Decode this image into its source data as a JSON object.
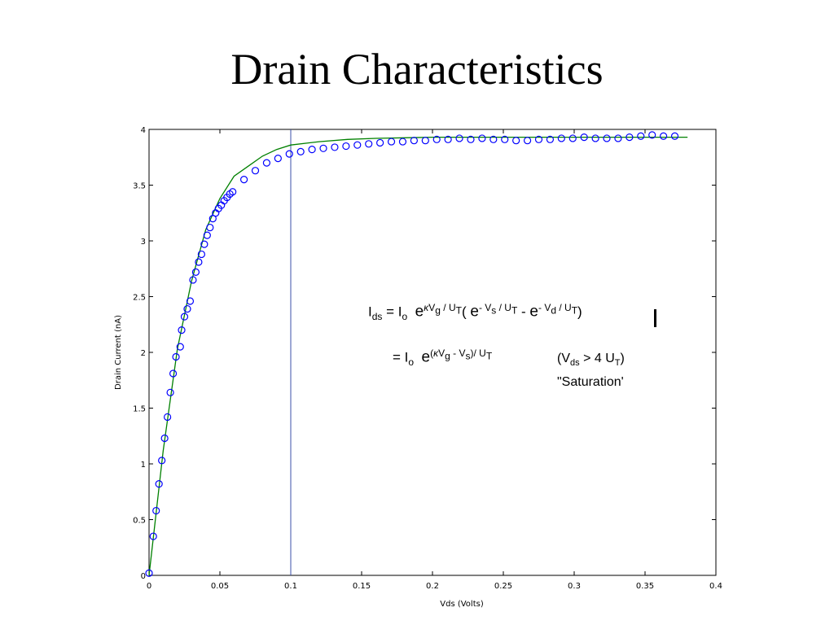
{
  "slide": {
    "title": "Drain Characteristics"
  },
  "chart_data": {
    "type": "scatter",
    "title": "",
    "xlabel": "Vds (Volts)",
    "ylabel": "Drain Current (nA)",
    "xlim": [
      0,
      0.4
    ],
    "ylim": [
      0,
      4
    ],
    "grid": false,
    "x_ticks": [
      0,
      0.05,
      0.1,
      0.15,
      0.2,
      0.25,
      0.3,
      0.35,
      0.4
    ],
    "x_tick_labels": [
      "0",
      "0.05",
      "0.1",
      "0.15",
      "0.2",
      "0.25",
      "0.3",
      "0.35",
      "0.4"
    ],
    "y_ticks": [
      0,
      0.5,
      1,
      1.5,
      2,
      2.5,
      3,
      3.5,
      4
    ],
    "y_tick_labels": [
      "0",
      "0.5",
      "1",
      "1.5",
      "2",
      "2.5",
      "3",
      "3.5",
      "4"
    ],
    "vertical_line_x": 0.1,
    "colors": {
      "measured": "#0000ff",
      "model": "#008000",
      "vline": "#3b4fa8"
    },
    "series": [
      {
        "kind": "markers",
        "points": [
          [
            0.0,
            0.02
          ],
          [
            0.003,
            0.35
          ],
          [
            0.005,
            0.58
          ],
          [
            0.007,
            0.82
          ],
          [
            0.009,
            1.03
          ],
          [
            0.011,
            1.23
          ],
          [
            0.013,
            1.42
          ],
          [
            0.015,
            1.64
          ],
          [
            0.017,
            1.81
          ],
          [
            0.019,
            1.96
          ],
          [
            0.022,
            2.05
          ],
          [
            0.023,
            2.2
          ],
          [
            0.025,
            2.32
          ],
          [
            0.027,
            2.39
          ],
          [
            0.029,
            2.46
          ],
          [
            0.031,
            2.65
          ],
          [
            0.033,
            2.72
          ],
          [
            0.035,
            2.81
          ],
          [
            0.037,
            2.88
          ],
          [
            0.039,
            2.97
          ],
          [
            0.041,
            3.05
          ],
          [
            0.043,
            3.12
          ],
          [
            0.045,
            3.2
          ],
          [
            0.047,
            3.25
          ],
          [
            0.049,
            3.29
          ],
          [
            0.051,
            3.32
          ],
          [
            0.053,
            3.36
          ],
          [
            0.055,
            3.39
          ],
          [
            0.057,
            3.42
          ],
          [
            0.059,
            3.44
          ],
          [
            0.067,
            3.55
          ],
          [
            0.075,
            3.63
          ],
          [
            0.083,
            3.7
          ],
          [
            0.091,
            3.74
          ],
          [
            0.099,
            3.78
          ],
          [
            0.107,
            3.8
          ],
          [
            0.115,
            3.82
          ],
          [
            0.123,
            3.83
          ],
          [
            0.131,
            3.84
          ],
          [
            0.139,
            3.85
          ],
          [
            0.147,
            3.86
          ],
          [
            0.155,
            3.87
          ],
          [
            0.163,
            3.88
          ],
          [
            0.171,
            3.89
          ],
          [
            0.179,
            3.89
          ],
          [
            0.187,
            3.9
          ],
          [
            0.195,
            3.9
          ],
          [
            0.203,
            3.91
          ],
          [
            0.211,
            3.91
          ],
          [
            0.219,
            3.92
          ],
          [
            0.227,
            3.91
          ],
          [
            0.235,
            3.92
          ],
          [
            0.243,
            3.91
          ],
          [
            0.251,
            3.91
          ],
          [
            0.259,
            3.9
          ],
          [
            0.267,
            3.9
          ],
          [
            0.275,
            3.91
          ],
          [
            0.283,
            3.91
          ],
          [
            0.291,
            3.92
          ],
          [
            0.299,
            3.92
          ],
          [
            0.307,
            3.93
          ],
          [
            0.315,
            3.92
          ],
          [
            0.323,
            3.92
          ],
          [
            0.331,
            3.92
          ],
          [
            0.339,
            3.93
          ],
          [
            0.347,
            3.94
          ],
          [
            0.355,
            3.95
          ],
          [
            0.363,
            3.94
          ],
          [
            0.371,
            3.94
          ]
        ]
      },
      {
        "kind": "line",
        "points": [
          [
            0.0,
            0.0
          ],
          [
            0.01,
            1.12
          ],
          [
            0.02,
            2.03
          ],
          [
            0.03,
            2.64
          ],
          [
            0.04,
            3.1
          ],
          [
            0.05,
            3.38
          ],
          [
            0.06,
            3.58
          ],
          [
            0.07,
            3.67
          ],
          [
            0.08,
            3.76
          ],
          [
            0.09,
            3.82
          ],
          [
            0.1,
            3.86
          ],
          [
            0.12,
            3.89
          ],
          [
            0.14,
            3.91
          ],
          [
            0.16,
            3.92
          ],
          [
            0.2,
            3.93
          ],
          [
            0.25,
            3.93
          ],
          [
            0.3,
            3.93
          ],
          [
            0.35,
            3.93
          ],
          [
            0.38,
            3.93
          ]
        ]
      }
    ]
  },
  "equation": {
    "line1": {
      "I": "I",
      "ds_sub": "ds",
      "eq1": " = I",
      "o_sub": "o",
      "e1": "e",
      "exp1_kappa": "κ",
      "exp1_V": "V",
      "exp1_g": "g",
      "exp1_rest": " / U",
      "exp1_T": "T",
      "paren_open": "(",
      "e2": "e",
      "exp2_minus_V": "- V",
      "exp2_s": "s",
      "exp2_rest": " / U",
      "exp2_T": "T",
      "minus": " - ",
      "e3": "e",
      "exp3_minus_V": "- V",
      "exp3_d": "d",
      "exp3_rest": " / U",
      "exp3_T": "T",
      "paren_close": ")"
    },
    "line2": {
      "eq2": "= I",
      "o_sub": "o",
      "e": "e",
      "exp_open": "(",
      "exp_kappa": "κ",
      "exp_V": "V",
      "exp_g": "g",
      "exp_minus": " - V",
      "exp_s": "s",
      "exp_close": ")/ U",
      "exp_T": "T"
    },
    "condition": {
      "open": "(V",
      "ds_sub": "ds",
      "mid": " > 4 U",
      "T_sub": "T",
      "close": ")"
    },
    "saturation": "\"Saturation'"
  }
}
